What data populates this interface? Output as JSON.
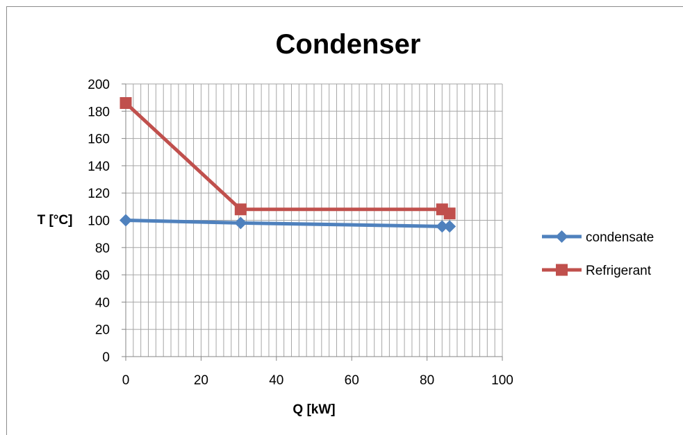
{
  "chart_data": {
    "type": "line",
    "title": "Condenser",
    "xlabel": "Q [kW]",
    "ylabel": "T [°C]",
    "xlim": [
      0,
      100
    ],
    "ylim": [
      0,
      200
    ],
    "x_ticks": [
      0,
      20,
      40,
      60,
      80,
      100
    ],
    "y_ticks": [
      0,
      20,
      40,
      60,
      80,
      100,
      120,
      140,
      160,
      180,
      200
    ],
    "grid": true,
    "legend_position": "right",
    "series": [
      {
        "name": "condensate",
        "color": "#4f81bd",
        "marker": "diamond",
        "x": [
          0,
          30.5,
          84,
          86
        ],
        "y": [
          100,
          98,
          95.5,
          95.5
        ]
      },
      {
        "name": "Refrigerant",
        "color": "#c0504d",
        "marker": "square",
        "x": [
          0,
          30.5,
          84,
          86
        ],
        "y": [
          186,
          108,
          108,
          105
        ]
      }
    ]
  }
}
